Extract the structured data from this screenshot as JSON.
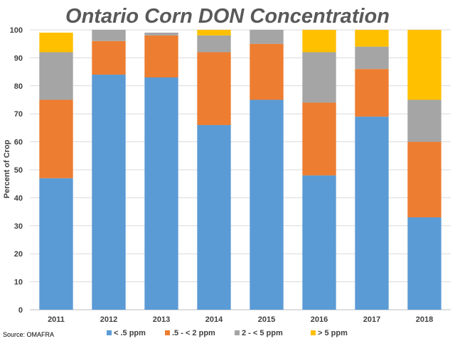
{
  "chart_data": {
    "type": "bar",
    "stacked": true,
    "title": "Ontario Corn DON Concentration",
    "ylabel": "Percent of Crop",
    "xlabel": "",
    "ylim": [
      0,
      100
    ],
    "yticks": [
      0,
      10,
      20,
      30,
      40,
      50,
      60,
      70,
      80,
      90,
      100
    ],
    "categories": [
      "2011",
      "2012",
      "2013",
      "2014",
      "2015",
      "2016",
      "2017",
      "2018"
    ],
    "series": [
      {
        "name": "< .5 ppm",
        "color": "#5b9bd5",
        "values": [
          47,
          84,
          83,
          66,
          75,
          48,
          69,
          33
        ]
      },
      {
        "name": ".5 - < 2 ppm",
        "color": "#ed7d31",
        "values": [
          28,
          12,
          15,
          26,
          20,
          26,
          17,
          27
        ]
      },
      {
        "name": "2 - < 5 ppm",
        "color": "#a5a5a5",
        "values": [
          17,
          4,
          1,
          6,
          5,
          18,
          8,
          15
        ]
      },
      {
        "name": "> 5  ppm",
        "color": "#ffc000",
        "values": [
          7,
          0,
          0,
          2,
          0,
          8,
          6,
          25
        ]
      }
    ],
    "grid": true,
    "legend_position": "bottom",
    "source": "Source: OMAFRA"
  }
}
